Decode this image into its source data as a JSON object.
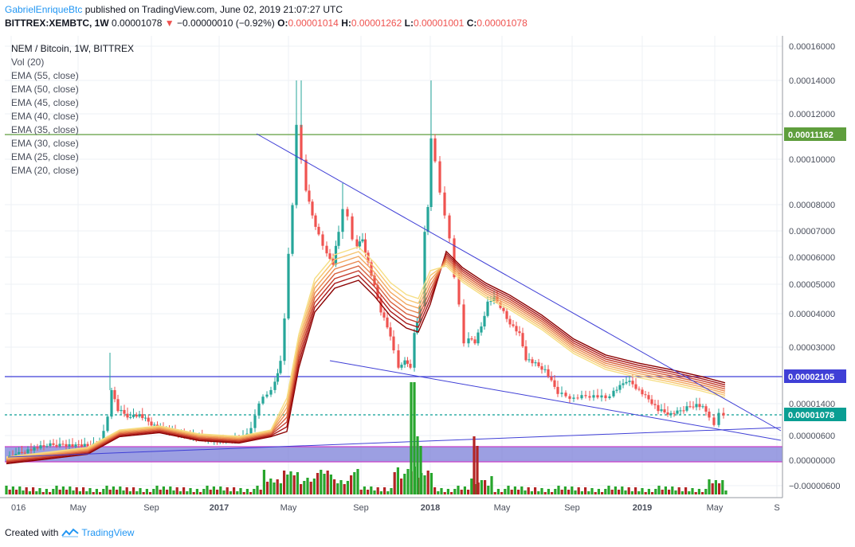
{
  "header": {
    "author": "GabrielEnriqueBtc",
    "published": " published on TradingView.com, June 02, 2019 21:07:27 UTC",
    "symbol": "BITTREX:XEMBTC, 1W",
    "last": "0.00001078",
    "change_arrow": "▼",
    "change": "−0.00000010 (−0.92%)",
    "o_label": "O:",
    "o_value": "0.00001014",
    "h_label": "H:",
    "h_value": "0.00001262",
    "l_label": "L:",
    "l_value": "0.00001001",
    "c_label": "C:",
    "c_value": "0.00001078"
  },
  "legend": {
    "title": "NEM / Bitcoin, 1W, BITTREX",
    "indicators": [
      "Vol (20)",
      "EMA (55, close)",
      "EMA (50, close)",
      "EMA (45, close)",
      "EMA (40, close)",
      "EMA (35, close)",
      "EMA (30, close)",
      "EMA (25, close)",
      "EMA (20, close)"
    ]
  },
  "footer": {
    "created_with": "Created with",
    "brand": "TradingView"
  },
  "colors": {
    "up": "#26a69a",
    "down": "#ef5350",
    "vol_up": "#27a52c",
    "vol_down": "#b32424",
    "trendline": "#3f3fd6",
    "green_line": "#5f9e3d",
    "blue_line": "#3f3fd6",
    "band_fill": "#7b7fd8",
    "band_border": "#c940c9",
    "current_price": "#0a9e93",
    "ema": [
      "#8b0000",
      "#a81818",
      "#c43a2a",
      "#d8603c",
      "#e8864e",
      "#f2a75e",
      "#f7c46e",
      "#f6de84"
    ]
  },
  "chart_data": {
    "type": "candlestick",
    "title": "NEM / Bitcoin, 1W, BITTREX",
    "y_ticks": [
      "0.00016000",
      "0.00014000",
      "0.00012000",
      "0.00010000",
      "0.00008000",
      "0.00007000",
      "0.00006000",
      "0.00005000",
      "0.00004000",
      "0.00003000",
      "0.00001400",
      "0.00000600",
      "0.00000000",
      "−0.00000600"
    ],
    "x_ticks": [
      "016",
      "May",
      "Sep",
      "2017",
      "May",
      "Sep",
      "2018",
      "May",
      "Sep",
      "2019",
      "May",
      "S"
    ],
    "price_labels": [
      {
        "value": "0.00011162",
        "kind": "green"
      },
      {
        "value": "0.00002105",
        "kind": "blue"
      },
      {
        "value": "0.00001078",
        "kind": "current"
      }
    ],
    "key_price_points": [
      {
        "date": "2016-01",
        "close": 8e-07
      },
      {
        "date": "2016-06",
        "close": 2.5e-06
      },
      {
        "date": "2016-07",
        "high": 2.5e-05
      },
      {
        "date": "2017-01",
        "close": 1.5e-06
      },
      {
        "date": "2017-05",
        "high": 0.00014,
        "close": 0.000118
      },
      {
        "date": "2017-08",
        "close": 8.8e-05
      },
      {
        "date": "2017-12",
        "close": 2e-05
      },
      {
        "date": "2018-01",
        "high": 0.00014,
        "close": 0.00011
      },
      {
        "date": "2018-04",
        "close": 3e-05
      },
      {
        "date": "2018-05",
        "close": 4.6e-05
      },
      {
        "date": "2018-11",
        "close": 1.5e-05
      },
      {
        "date": "2019-05",
        "low": 6.5e-06,
        "close": 1.078e-05
      }
    ]
  }
}
